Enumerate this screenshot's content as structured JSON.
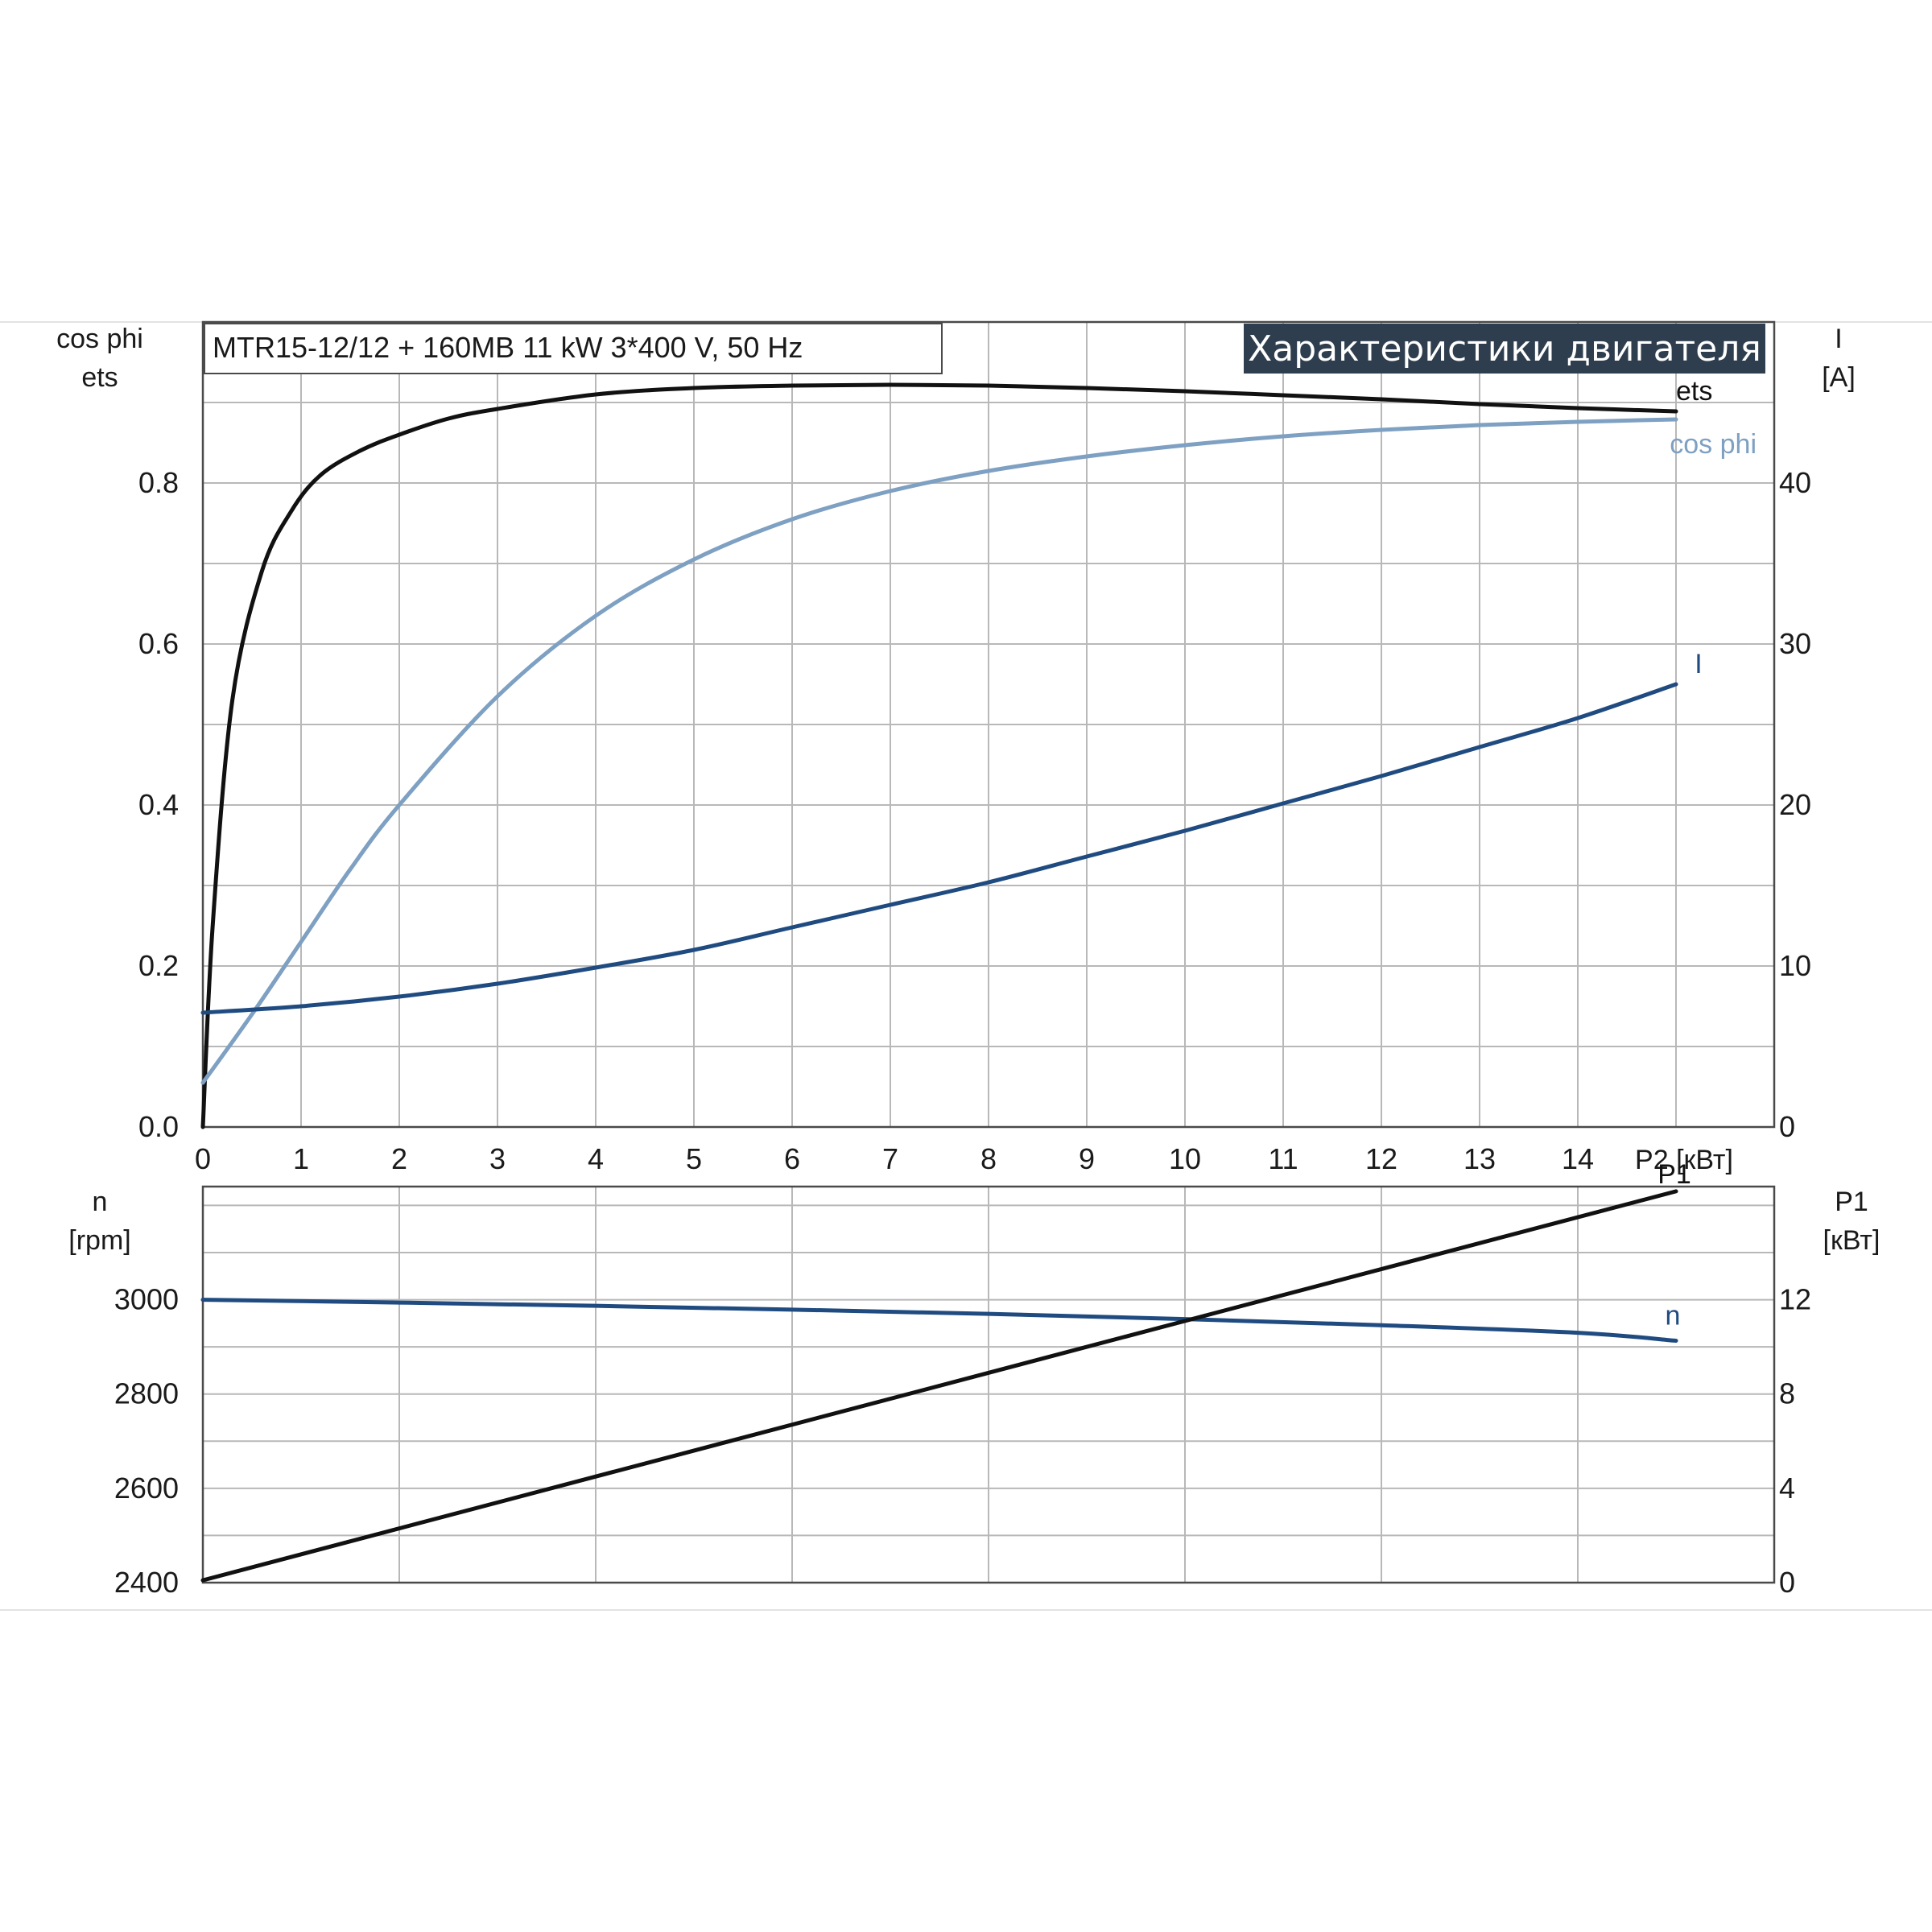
{
  "header": {
    "model": "MTR15-12/12 + 160MB   11 kW   3*400 V, 50 Hz",
    "title": "Характеристики двигателя"
  },
  "colors": {
    "ets": "#111111",
    "cos_phi": "#7ea0c2",
    "current": "#1f4b80",
    "speed": "#1f4b80",
    "p1": "#111111",
    "title_bg": "#2f3e4e"
  },
  "chart_data": [
    {
      "type": "line",
      "name": "upper",
      "x_label": "P2 [кВт]",
      "y_left_label_1": "cos phi",
      "y_left_label_2": "ets",
      "y_right_label_1": "I",
      "y_right_label_2": "[A]",
      "xlim": [
        0,
        16
      ],
      "ylim_left": [
        0,
        1.0
      ],
      "ylim_right": [
        0,
        50
      ],
      "x_ticks": [
        "0",
        "1",
        "2",
        "3",
        "4",
        "5",
        "6",
        "7",
        "8",
        "9",
        "10",
        "11",
        "12",
        "13",
        "14"
      ],
      "y_left_ticks": [
        "0.0",
        "0.2",
        "0.4",
        "0.6",
        "0.8"
      ],
      "y_right_ticks": [
        "0",
        "10",
        "20",
        "30",
        "40"
      ],
      "grid": true,
      "series": [
        {
          "name": "ets",
          "axis": "left",
          "x": [
            0,
            0.1,
            0.3,
            0.6,
            0.9,
            1.2,
            1.6,
            2,
            2.5,
            3,
            4,
            5,
            6,
            7,
            8,
            9,
            10,
            11,
            12,
            13,
            14,
            15
          ],
          "y": [
            0.0,
            0.25,
            0.53,
            0.69,
            0.765,
            0.81,
            0.84,
            0.86,
            0.88,
            0.892,
            0.91,
            0.918,
            0.921,
            0.922,
            0.921,
            0.918,
            0.914,
            0.909,
            0.904,
            0.898,
            0.893,
            0.889
          ]
        },
        {
          "name": "cos phi",
          "axis": "left",
          "x": [
            0,
            0.5,
            1,
            1.5,
            2,
            3,
            4,
            5,
            6,
            7,
            8,
            9,
            10,
            11,
            12,
            13,
            14,
            15
          ],
          "y": [
            0.055,
            0.14,
            0.23,
            0.32,
            0.4,
            0.535,
            0.635,
            0.705,
            0.755,
            0.79,
            0.815,
            0.833,
            0.847,
            0.858,
            0.866,
            0.872,
            0.876,
            0.879
          ]
        },
        {
          "name": "I",
          "axis": "right",
          "x": [
            0,
            1,
            2,
            3,
            4,
            5,
            6,
            7,
            8,
            9,
            10,
            11,
            12,
            13,
            14,
            15
          ],
          "y": [
            7.1,
            7.5,
            8.1,
            8.9,
            9.9,
            11.0,
            12.4,
            13.8,
            15.2,
            16.8,
            18.4,
            20.1,
            21.8,
            23.6,
            25.4,
            27.5
          ]
        }
      ]
    },
    {
      "type": "line",
      "name": "lower",
      "y_left_label_1": "n",
      "y_left_label_2": "[rpm]",
      "y_right_label_1": "P1",
      "y_right_label_2": "[кВт]",
      "xlim": [
        0,
        16
      ],
      "ylim_left": [
        2400,
        3240
      ],
      "ylim_right": [
        0,
        16.8
      ],
      "y_left_ticks": [
        "2400",
        "2600",
        "2800",
        "3000"
      ],
      "y_right_ticks": [
        "0",
        "4",
        "8",
        "12"
      ],
      "grid": true,
      "series": [
        {
          "name": "n",
          "axis": "left",
          "x": [
            0,
            2,
            4,
            6,
            8,
            10,
            12,
            14,
            15
          ],
          "y": [
            3000,
            2994,
            2987,
            2979,
            2970,
            2959,
            2946,
            2930,
            2913
          ]
        },
        {
          "name": "P1",
          "axis": "right",
          "x": [
            0,
            15
          ],
          "y": [
            0.1,
            16.6
          ]
        }
      ]
    }
  ]
}
